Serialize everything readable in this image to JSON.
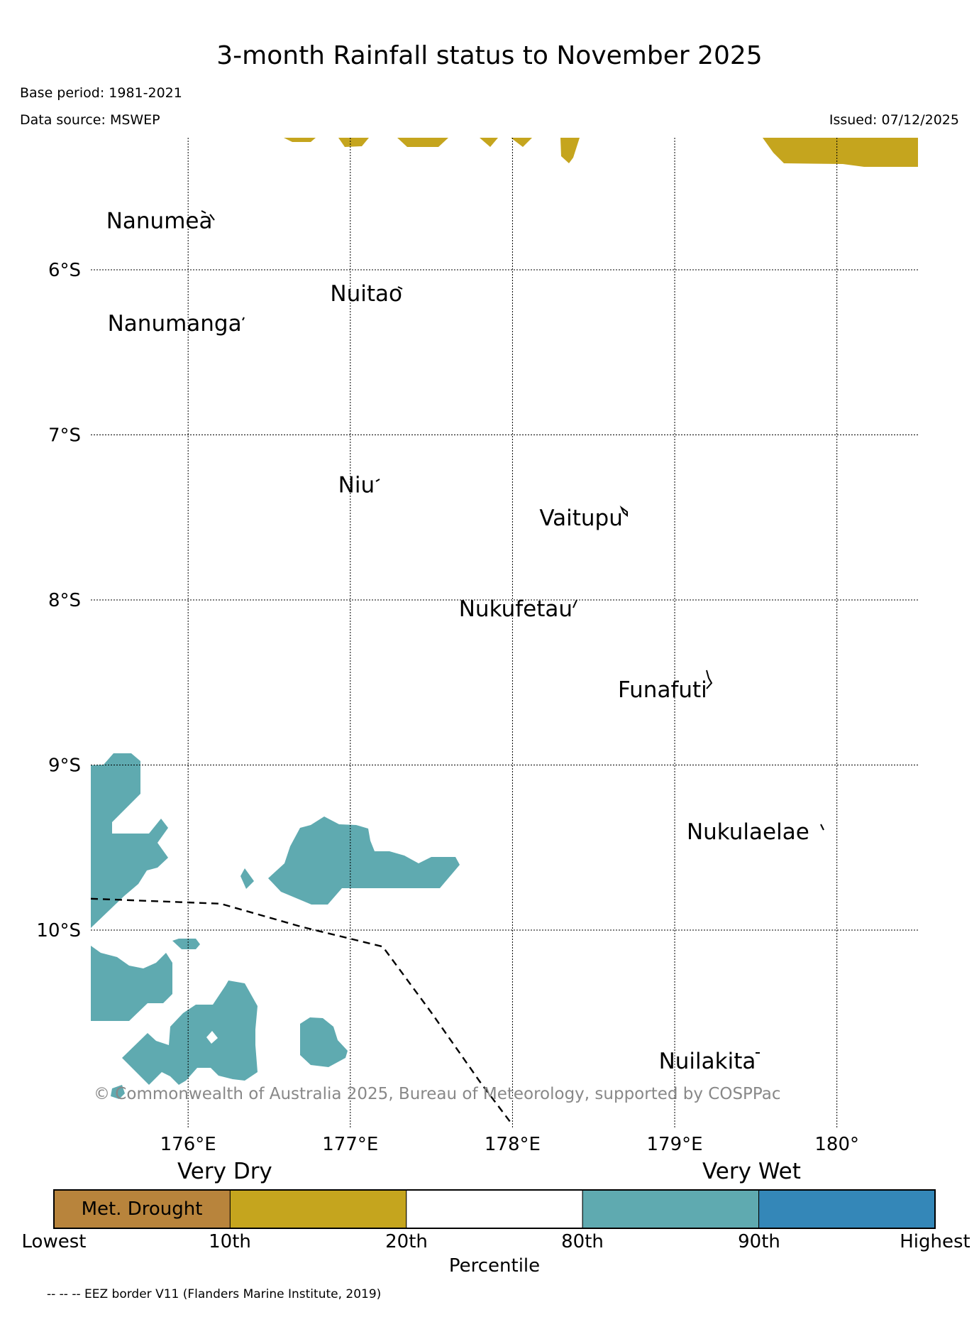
{
  "title": "3-month Rainfall status to November 2025",
  "base_period": "Base period: 1981-2021",
  "data_source": "Data source: MSWEP",
  "issued": "Issued: 07/12/2025",
  "copyright": "© Commonwealth of Australia 2025, Bureau of Meteorology, supported by COSPPac",
  "eez_note": "-- -- -- EEZ border V11 (Flanders Marine Institute, 2019)",
  "colors": {
    "met_drought": "#b8843c",
    "very_dry": "#c5a51e",
    "normal": "#ffffff",
    "very_wet": "#5faab0",
    "highest": "#3487b8"
  },
  "map": {
    "lon_range": [
      175.4,
      180.5
    ],
    "lat_range": [
      -11.2,
      -5.2
    ],
    "lon_ticks": [
      {
        "value": 176,
        "label": "176°E"
      },
      {
        "value": 177,
        "label": "177°E"
      },
      {
        "value": 178,
        "label": "178°E"
      },
      {
        "value": 179,
        "label": "179°E"
      },
      {
        "value": 180,
        "label": "180°"
      }
    ],
    "lat_ticks": [
      {
        "value": -6,
        "label": "6°S"
      },
      {
        "value": -7,
        "label": "7°S"
      },
      {
        "value": -8,
        "label": "8°S"
      },
      {
        "value": -9,
        "label": "9°S"
      },
      {
        "value": -10,
        "label": "10°S"
      }
    ],
    "islands": [
      {
        "name": "Nanumea",
        "lon": 176.15,
        "lat": -5.68
      },
      {
        "name": "Nuitao",
        "lon": 177.32,
        "lat": -6.12
      },
      {
        "name": "Nanumanga",
        "lon": 176.33,
        "lat": -6.3
      },
      {
        "name": "Niu",
        "lon": 177.15,
        "lat": -7.28
      },
      {
        "name": "Vaitupu",
        "lon": 178.68,
        "lat": -7.48
      },
      {
        "name": "Nukufetau",
        "lon": 178.37,
        "lat": -8.03
      },
      {
        "name": "Funafuti",
        "lon": 179.2,
        "lat": -8.52
      },
      {
        "name": "Nukulaelae",
        "lon": 179.83,
        "lat": -9.38
      },
      {
        "name": "Nuilakita",
        "lon": 179.5,
        "lat": -10.77
      }
    ],
    "eez_border": [
      [
        175.4,
        -9.81
      ],
      [
        176.2,
        -9.84
      ],
      [
        176.7,
        -9.98
      ],
      [
        177.2,
        -10.1
      ],
      [
        177.5,
        -10.5
      ],
      [
        177.8,
        -10.92
      ],
      [
        178.0,
        -11.18
      ]
    ]
  },
  "legend": {
    "left_heading": "Very Dry",
    "right_heading": "Very Wet",
    "title": "Percentile",
    "categories": [
      {
        "label": "Met. Drought",
        "color": "#b8843c"
      },
      {
        "label": "",
        "color": "#c5a51e"
      },
      {
        "label": "",
        "color": "#ffffff"
      },
      {
        "label": "",
        "color": "#5faab0"
      },
      {
        "label": "",
        "color": "#3487b8"
      }
    ],
    "ticks": [
      "Lowest",
      "10th",
      "20th",
      "80th",
      "90th",
      "Highest"
    ]
  }
}
